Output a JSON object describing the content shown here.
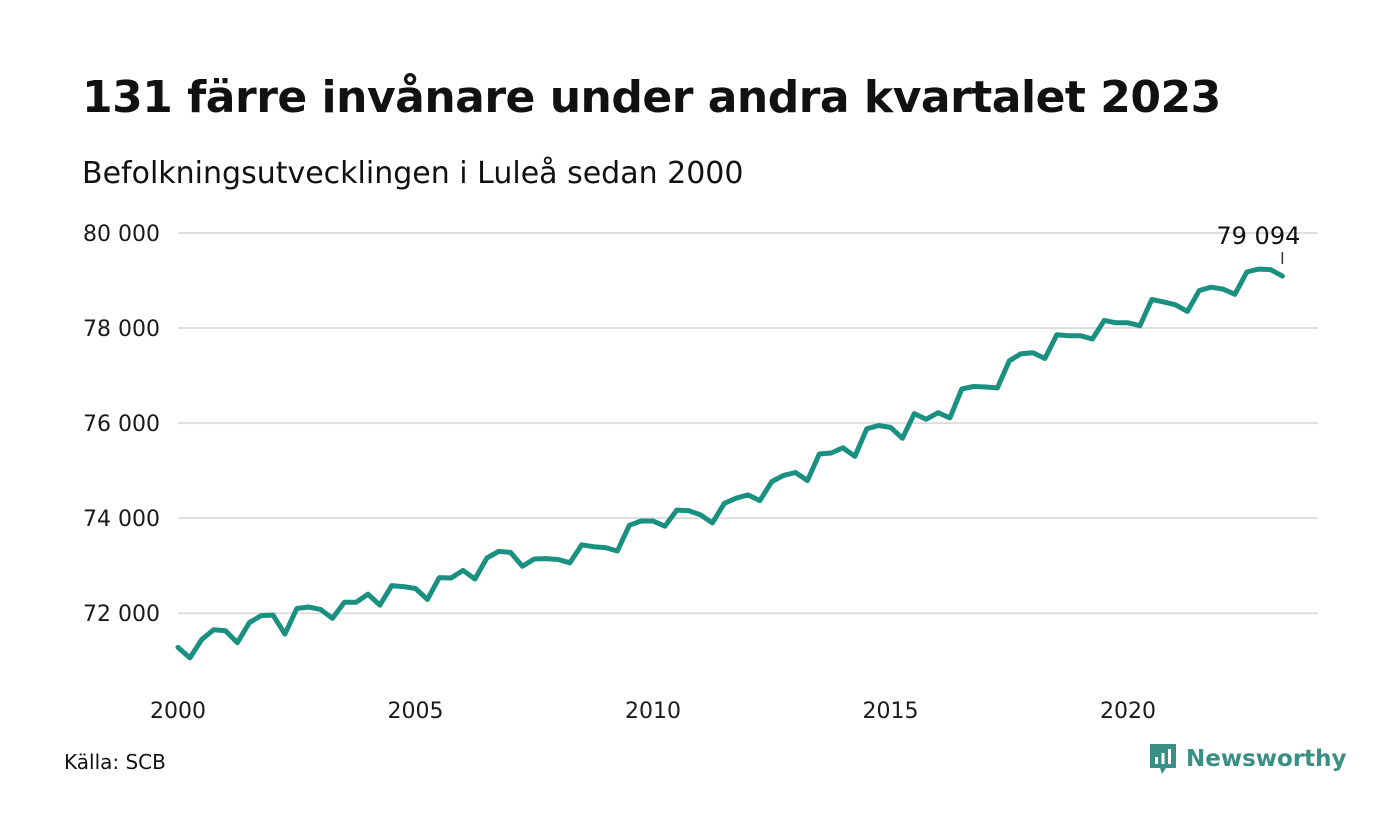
{
  "header": {
    "title": "131 färre invånare under andra kvartalet 2023",
    "subtitle": "Befolkningsutvecklingen i Luleå sedan 2000"
  },
  "footer": {
    "source": "Källa: SCB",
    "brand": "Newsworthy",
    "brand_icon": "newsworthy-logo-icon"
  },
  "colors": {
    "line": "#1a9080",
    "grid": "#dddddd",
    "brand": "#3a8f84"
  },
  "chart_data": {
    "type": "line",
    "title": "131 färre invånare under andra kvartalet 2023",
    "subtitle": "Befolkningsutvecklingen i Luleå sedan 2000",
    "xlabel": "",
    "ylabel": "",
    "xlim": [
      2000,
      2024
    ],
    "ylim": [
      70700,
      80000
    ],
    "x_ticks": [
      2000,
      2005,
      2010,
      2015,
      2020
    ],
    "x_tick_labels": [
      "2000",
      "2005",
      "2010",
      "2015",
      "2020"
    ],
    "y_ticks": [
      72000,
      74000,
      76000,
      78000,
      80000
    ],
    "y_tick_labels": [
      "72 000",
      "74 000",
      "76 000",
      "78 000",
      "80 000"
    ],
    "grid": true,
    "legend": "none",
    "annotation": {
      "text": "79 094",
      "at_last_point": true
    },
    "series": [
      {
        "x": [
          "2000K1",
          "2000K2",
          "2000K3",
          "2000K4",
          "2001K1",
          "2001K2",
          "2001K3",
          "2001K4",
          "2002K1",
          "2002K2",
          "2002K3",
          "2002K4",
          "2003K1",
          "2003K2",
          "2003K3",
          "2003K4",
          "2004K1",
          "2004K2",
          "2004K3",
          "2004K4",
          "2005K1",
          "2005K2",
          "2005K3",
          "2005K4",
          "2006K1",
          "2006K2",
          "2006K3",
          "2006K4",
          "2007K1",
          "2007K2",
          "2007K3",
          "2007K4",
          "2008K1",
          "2008K2",
          "2008K3",
          "2008K4",
          "2009K1",
          "2009K2",
          "2009K3",
          "2009K4",
          "2010K1",
          "2010K2",
          "2010K3",
          "2010K4",
          "2011K1",
          "2011K2",
          "2011K3",
          "2011K4",
          "2012K1",
          "2012K2",
          "2012K3",
          "2012K4",
          "2013K1",
          "2013K2",
          "2013K3",
          "2013K4",
          "2014K1",
          "2014K2",
          "2014K3",
          "2014K4",
          "2015K1",
          "2015K2",
          "2015K3",
          "2015K4",
          "2016K1",
          "2016K2",
          "2016K3",
          "2016K4",
          "2017K1",
          "2017K2",
          "2017K3",
          "2017K4",
          "2018K1",
          "2018K2",
          "2018K3",
          "2018K4",
          "2019K1",
          "2019K2",
          "2019K3",
          "2019K4",
          "2020K1",
          "2020K2",
          "2020K3",
          "2020K4",
          "2021K1",
          "2021K2",
          "2021K3",
          "2021K4",
          "2022K1",
          "2022K2",
          "2022K3",
          "2022K4",
          "2023K1",
          "2023K2"
        ],
        "values": [
          71280,
          71060,
          71450,
          71650,
          71630,
          71380,
          71800,
          71950,
          71960,
          71560,
          72100,
          72130,
          72080,
          71890,
          72230,
          72230,
          72400,
          72170,
          72580,
          72560,
          72520,
          72290,
          72750,
          72740,
          72900,
          72720,
          73160,
          73300,
          73280,
          72990,
          73140,
          73150,
          73130,
          73060,
          73440,
          73400,
          73380,
          73310,
          73850,
          73940,
          73940,
          73830,
          74170,
          74160,
          74070,
          73900,
          74310,
          74420,
          74490,
          74370,
          74770,
          74900,
          74960,
          74790,
          75350,
          75370,
          75480,
          75300,
          75880,
          75950,
          75910,
          75680,
          76200,
          76080,
          76220,
          76110,
          76720,
          76770,
          76760,
          76740,
          77310,
          77460,
          77480,
          77360,
          77860,
          77840,
          77840,
          77770,
          78160,
          78110,
          78110,
          78050,
          78600,
          78550,
          78490,
          78350,
          78790,
          78860,
          78820,
          78710,
          79180,
          79240,
          79230,
          79094
        ]
      }
    ]
  }
}
